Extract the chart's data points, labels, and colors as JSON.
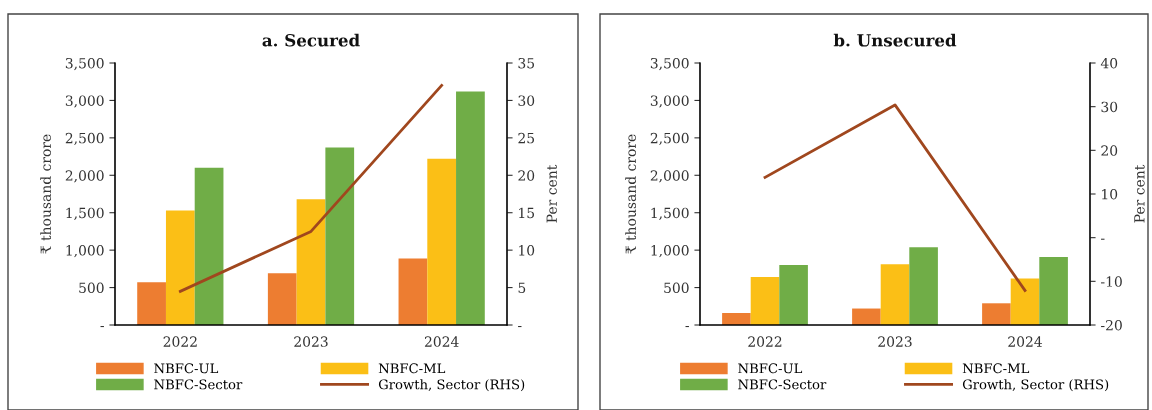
{
  "chart_data": [
    {
      "type": "bar",
      "title": "a. Secured",
      "categories": [
        "2022",
        "2023",
        "2024"
      ],
      "ylabel": "₹ thousand crore",
      "y2label": "Per cent",
      "series": [
        {
          "name": "NBFC-UL",
          "color": "#ed7d31",
          "values": [
            570,
            690,
            890
          ]
        },
        {
          "name": "NBFC-ML",
          "color": "#fbbf16",
          "values": [
            1530,
            1680,
            2220
          ]
        },
        {
          "name": "NBFC-Sector",
          "color": "#70ad47",
          "values": [
            2100,
            2370,
            3120
          ]
        },
        {
          "name": "Growth, Sector (RHS)",
          "color": "#a0471e",
          "type": "line",
          "axis": "y2",
          "values": [
            4.5,
            12.5,
            32.0
          ]
        }
      ],
      "ylim": [
        0,
        3500
      ],
      "yticks": [
        {
          "value": 0,
          "label": "-"
        },
        500,
        {
          "value": 1000,
          "label": "1,000"
        },
        {
          "value": 1500,
          "label": "1,500"
        },
        {
          "value": 2000,
          "label": "2,000"
        },
        {
          "value": 2500,
          "label": "2,500"
        },
        {
          "value": 3000,
          "label": "3,000"
        },
        {
          "value": 3500,
          "label": "3,500"
        }
      ],
      "y2lim": [
        0,
        35
      ],
      "y2ticks": [
        {
          "value": 0,
          "label": "-"
        },
        5,
        10,
        15,
        20,
        25,
        30,
        35
      ],
      "legend": "bottom",
      "grid": false
    },
    {
      "type": "bar",
      "title": "b. Unsecured",
      "categories": [
        "2022",
        "2023",
        "2024"
      ],
      "ylabel": "₹ thousand crore",
      "y2label": "Per cent",
      "series": [
        {
          "name": "NBFC-UL",
          "color": "#ed7d31",
          "values": [
            160,
            220,
            290
          ]
        },
        {
          "name": "NBFC-ML",
          "color": "#fbbf16",
          "values": [
            640,
            810,
            620
          ]
        },
        {
          "name": "NBFC-Sector",
          "color": "#70ad47",
          "values": [
            800,
            1040,
            910
          ]
        },
        {
          "name": "Growth, Sector (RHS)",
          "color": "#a0471e",
          "type": "line",
          "axis": "y2",
          "values": [
            13.8,
            30.4,
            -12.1
          ]
        }
      ],
      "ylim": [
        0,
        3500
      ],
      "yticks": [
        {
          "value": 0,
          "label": "-"
        },
        500,
        {
          "value": 1000,
          "label": "1,000"
        },
        {
          "value": 1500,
          "label": "1,500"
        },
        {
          "value": 2000,
          "label": "2,000"
        },
        {
          "value": 2500,
          "label": "2,500"
        },
        {
          "value": 3000,
          "label": "3,000"
        },
        {
          "value": 3500,
          "label": "3,500"
        }
      ],
      "y2lim": [
        -20,
        40
      ],
      "y2ticks": [
        -20,
        -10,
        {
          "value": 0,
          "label": "-"
        },
        10,
        20,
        30,
        40
      ],
      "legend": "bottom",
      "grid": false
    }
  ]
}
